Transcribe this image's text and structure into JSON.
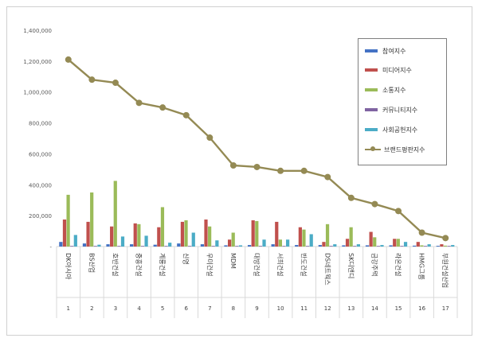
{
  "chart_data": {
    "type": "bar+line",
    "title": "",
    "categories": [
      "DK아시아",
      "BS산업",
      "호반건설",
      "중흥건설",
      "계룡건설",
      "신영",
      "우미건설",
      "MDM",
      "대방건설",
      "서희건설",
      "반도건설",
      "DS네트웍스",
      "SK디앤디",
      "금강주택",
      "라온건설",
      "HMG그룹",
      "부원건설산업"
    ],
    "ranks": [
      "1",
      "2",
      "3",
      "4",
      "5",
      "6",
      "7",
      "8",
      "9",
      "10",
      "11",
      "12",
      "13",
      "14",
      "15",
      "16",
      "17"
    ],
    "ylim": [
      0,
      1400000
    ],
    "yticks": [
      "-",
      "200,000",
      "400,000",
      "600,000",
      "800,000",
      "1,000,000",
      "1,200,000",
      "1,400,000"
    ],
    "ytick_values": [
      0,
      200000,
      400000,
      600000,
      800000,
      1000000,
      1200000,
      1400000
    ],
    "series": [
      {
        "name": "참여지수",
        "color": "#4472c4",
        "type": "bar",
        "values": [
          30000,
          20000,
          15000,
          15000,
          12000,
          20000,
          15000,
          8000,
          10000,
          15000,
          10000,
          10000,
          8000,
          8000,
          8000,
          6000,
          5000
        ]
      },
      {
        "name": "미디어지수",
        "color": "#c0504d",
        "type": "bar",
        "values": [
          175000,
          160000,
          130000,
          150000,
          125000,
          160000,
          175000,
          45000,
          170000,
          160000,
          125000,
          30000,
          50000,
          95000,
          50000,
          30000,
          15000
        ]
      },
      {
        "name": "소통지수",
        "color": "#9bbb59",
        "type": "bar",
        "values": [
          335000,
          350000,
          425000,
          145000,
          255000,
          170000,
          130000,
          90000,
          165000,
          45000,
          110000,
          145000,
          125000,
          60000,
          50000,
          8000,
          6000
        ]
      },
      {
        "name": "커뮤니티지수",
        "color": "#8064a2",
        "type": "bar",
        "values": [
          3000,
          3000,
          3000,
          3000,
          3000,
          3000,
          3000,
          3000,
          3000,
          3000,
          3000,
          3000,
          3000,
          3000,
          3000,
          3000,
          3000
        ]
      },
      {
        "name": "사회공헌지수",
        "color": "#4bacc6",
        "type": "bar",
        "values": [
          75000,
          12000,
          65000,
          70000,
          25000,
          90000,
          40000,
          8000,
          45000,
          45000,
          80000,
          15000,
          15000,
          10000,
          30000,
          15000,
          10000
        ]
      },
      {
        "name": "브랜드평판지수",
        "color": "#948a54",
        "type": "line",
        "values": [
          1210000,
          1080000,
          1060000,
          930000,
          900000,
          850000,
          705000,
          525000,
          515000,
          490000,
          490000,
          450000,
          315000,
          275000,
          230000,
          90000,
          55000
        ]
      }
    ]
  }
}
